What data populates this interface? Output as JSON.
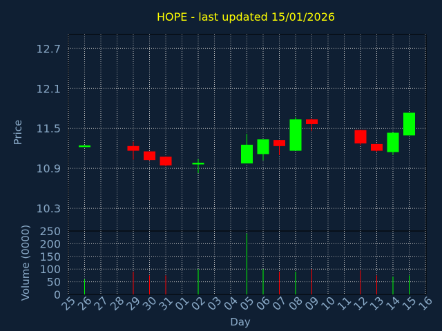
{
  "chart_data": {
    "type": "candlestick",
    "title": "HOPE - last updated 15/01/2026",
    "xlabel": "Day",
    "price_panel": {
      "ylabel": "Price",
      "yticks": [
        "10.3",
        "10.9",
        "11.5",
        "12.1",
        "12.7"
      ],
      "ylim": [
        9.96,
        12.91
      ]
    },
    "volume_panel": {
      "ylabel": "Volume (0000)",
      "yticks": [
        "0",
        "50",
        "100",
        "150",
        "200",
        "250"
      ],
      "ylim": [
        0,
        250
      ]
    },
    "x_ticks": [
      "25",
      "26",
      "27",
      "28",
      "29",
      "30",
      "31",
      "01",
      "02",
      "03",
      "04",
      "05",
      "06",
      "07",
      "08",
      "09",
      "10",
      "11",
      "12",
      "13",
      "14",
      "15",
      "16"
    ],
    "grid": true,
    "colors": {
      "up": "#00ff00",
      "down": "#ff0000",
      "grid": "#c0c0c0",
      "frame": "#000000",
      "background": "#0f1f33",
      "title": "#ffff00",
      "labels": "#8aaac8"
    },
    "candles": [
      {
        "day": "26",
        "open": 11.24,
        "high": 11.25,
        "low": 11.23,
        "close": 11.24,
        "volume": 60
      },
      {
        "day": "29",
        "open": 11.23,
        "high": 11.3,
        "low": 11.03,
        "close": 11.17,
        "volume": 90
      },
      {
        "day": "30",
        "open": 11.15,
        "high": 11.15,
        "low": 11.02,
        "close": 11.03,
        "volume": 75
      },
      {
        "day": "31",
        "open": 11.07,
        "high": 11.08,
        "low": 10.93,
        "close": 10.95,
        "volume": 75
      },
      {
        "day": "02",
        "open": 10.97,
        "high": 11.04,
        "low": 10.83,
        "close": 10.98,
        "volume": 100
      },
      {
        "day": "05",
        "open": 10.98,
        "high": 11.42,
        "low": 10.98,
        "close": 11.25,
        "volume": 240
      },
      {
        "day": "06",
        "open": 11.12,
        "high": 11.33,
        "low": 11.02,
        "close": 11.33,
        "volume": 100
      },
      {
        "day": "07",
        "open": 11.32,
        "high": 11.32,
        "low": 11.1,
        "close": 11.24,
        "volume": 90
      },
      {
        "day": "08",
        "open": 11.17,
        "high": 11.67,
        "low": 11.17,
        "close": 11.63,
        "volume": 90
      },
      {
        "day": "09",
        "open": 11.63,
        "high": 11.65,
        "low": 11.46,
        "close": 11.57,
        "volume": 100
      },
      {
        "day": "12",
        "open": 11.47,
        "high": 11.48,
        "low": 11.25,
        "close": 11.28,
        "volume": 95
      },
      {
        "day": "13",
        "open": 11.26,
        "high": 11.27,
        "low": 11.15,
        "close": 11.17,
        "volume": 75
      },
      {
        "day": "14",
        "open": 11.15,
        "high": 11.44,
        "low": 11.1,
        "close": 11.43,
        "volume": 70
      },
      {
        "day": "15",
        "open": 11.4,
        "high": 11.73,
        "low": 11.4,
        "close": 11.73,
        "volume": 75
      }
    ]
  }
}
